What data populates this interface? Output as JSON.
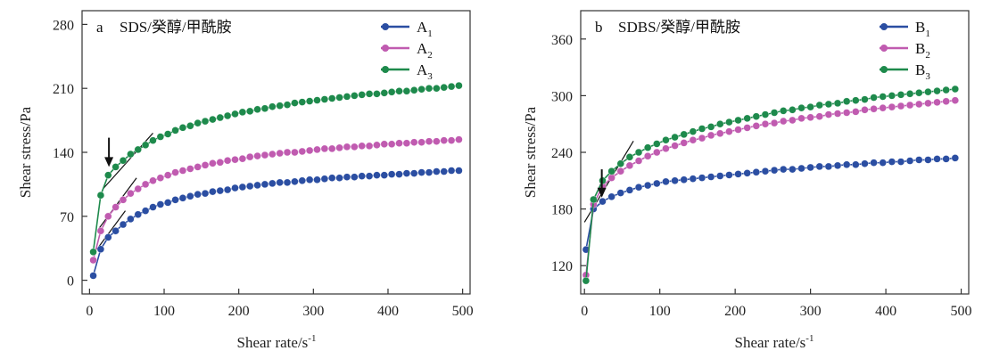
{
  "chart_data": [
    {
      "type": "scatter",
      "panel_label": "a",
      "title": "SDS/癸醇/甲酰胺",
      "xlabel": "Shear rate/s",
      "xlabel_sup": "-1",
      "ylabel": "Shear stress/Pa",
      "xlim": [
        -10,
        510
      ],
      "ylim": [
        -15,
        295
      ],
      "xticks": [
        0,
        100,
        200,
        300,
        400,
        500
      ],
      "yticks": [
        0,
        70,
        140,
        210,
        280
      ],
      "grid": false,
      "legend_position": "top-right",
      "tangent_lines": [
        {
          "series": "A1",
          "x": [
            10,
            48
          ],
          "y": [
            34,
            76
          ]
        },
        {
          "series": "A2",
          "x": [
            12,
            63
          ],
          "y": [
            56,
            112
          ]
        },
        {
          "series": "A3",
          "x": [
            18,
            85
          ],
          "y": [
            100,
            161
          ]
        }
      ],
      "arrow": {
        "x": 26,
        "y_from": 156,
        "y_to": 126
      },
      "series": [
        {
          "name": "A",
          "subscript": "1",
          "color": "#2b4ea2",
          "x": [
            5,
            15,
            25,
            35,
            45,
            55,
            65,
            75,
            85,
            95,
            105,
            115,
            125,
            135,
            145,
            155,
            165,
            175,
            185,
            195,
            205,
            215,
            225,
            235,
            245,
            255,
            265,
            275,
            285,
            295,
            305,
            315,
            325,
            335,
            345,
            355,
            365,
            375,
            385,
            395,
            405,
            415,
            425,
            435,
            445,
            455,
            465,
            475,
            485,
            495
          ],
          "y": [
            5,
            34,
            47,
            54,
            61,
            67,
            72,
            76,
            80,
            83,
            85,
            88,
            90,
            92,
            94,
            95,
            97,
            98,
            99,
            101,
            102,
            103,
            104,
            105,
            106,
            107,
            107,
            108,
            109,
            110,
            110,
            111,
            112,
            112,
            113,
            113,
            114,
            114,
            115,
            115,
            116,
            116,
            117,
            117,
            118,
            118,
            119,
            119,
            120,
            120
          ]
        },
        {
          "name": "A",
          "subscript": "2",
          "color": "#c05bb0",
          "x": [
            5,
            15,
            25,
            35,
            45,
            55,
            65,
            75,
            85,
            95,
            105,
            115,
            125,
            135,
            145,
            155,
            165,
            175,
            185,
            195,
            205,
            215,
            225,
            235,
            245,
            255,
            265,
            275,
            285,
            295,
            305,
            315,
            325,
            335,
            345,
            355,
            365,
            375,
            385,
            395,
            405,
            415,
            425,
            435,
            445,
            455,
            465,
            475,
            485,
            495
          ],
          "y": [
            22,
            54,
            70,
            80,
            88,
            95,
            100,
            105,
            109,
            112,
            115,
            118,
            120,
            122,
            124,
            126,
            128,
            129,
            131,
            132,
            133,
            135,
            136,
            137,
            138,
            139,
            140,
            140,
            141,
            142,
            143,
            144,
            144,
            145,
            146,
            146,
            147,
            147,
            148,
            149,
            149,
            150,
            150,
            151,
            151,
            152,
            152,
            153,
            153,
            154
          ]
        },
        {
          "name": "A",
          "subscript": "3",
          "color": "#1e8a4c",
          "x": [
            5,
            15,
            25,
            35,
            45,
            55,
            65,
            75,
            85,
            95,
            105,
            115,
            125,
            135,
            145,
            155,
            165,
            175,
            185,
            195,
            205,
            215,
            225,
            235,
            245,
            255,
            265,
            275,
            285,
            295,
            305,
            315,
            325,
            335,
            345,
            355,
            365,
            375,
            385,
            395,
            405,
            415,
            425,
            435,
            445,
            455,
            465,
            475,
            485,
            495
          ],
          "y": [
            31,
            93,
            115,
            124,
            131,
            138,
            143,
            148,
            153,
            157,
            160,
            164,
            167,
            169,
            172,
            174,
            176,
            178,
            180,
            182,
            184,
            185,
            187,
            188,
            190,
            191,
            192,
            194,
            195,
            196,
            197,
            198,
            199,
            200,
            201,
            202,
            203,
            204,
            204,
            205,
            206,
            207,
            207,
            208,
            209,
            210,
            210,
            211,
            212,
            213
          ]
        }
      ]
    },
    {
      "type": "scatter",
      "panel_label": "b",
      "title": "SDBS/癸醇/甲酰胺",
      "xlabel": "Shear rate/s",
      "xlabel_sup": "-1",
      "ylabel": "Shear stress/Pa",
      "xlim": [
        -5,
        510
      ],
      "ylim": [
        90,
        390
      ],
      "xticks": [
        0,
        100,
        200,
        300,
        400,
        500
      ],
      "yticks": [
        120,
        180,
        240,
        300,
        360
      ],
      "grid": false,
      "legend_position": "top-right",
      "tangent_lines": [
        {
          "series": "B3",
          "x": [
            0,
            65
          ],
          "y": [
            166,
            252
          ]
        }
      ],
      "arrow": {
        "x": 23,
        "y_from": 222,
        "y_to": 194
      },
      "series": [
        {
          "name": "B",
          "subscript": "1",
          "color": "#2b4ea2",
          "x": [
            2,
            12,
            24,
            36,
            48,
            60,
            72,
            84,
            96,
            108,
            120,
            132,
            144,
            156,
            168,
            180,
            192,
            204,
            216,
            228,
            240,
            252,
            264,
            276,
            288,
            300,
            312,
            324,
            336,
            348,
            360,
            372,
            384,
            396,
            408,
            420,
            432,
            444,
            456,
            468,
            480,
            492
          ],
          "y": [
            137,
            180,
            188,
            193,
            197,
            200,
            203,
            205,
            207,
            209,
            210,
            211,
            212,
            213,
            214,
            215,
            216,
            217,
            218,
            219,
            220,
            221,
            222,
            222,
            223,
            224,
            225,
            225,
            226,
            227,
            227,
            228,
            229,
            229,
            230,
            230,
            231,
            232,
            232,
            233,
            233,
            234
          ]
        },
        {
          "name": "B",
          "subscript": "2",
          "color": "#c05bb0",
          "x": [
            2,
            12,
            24,
            36,
            48,
            60,
            72,
            84,
            96,
            108,
            120,
            132,
            144,
            156,
            168,
            180,
            192,
            204,
            216,
            228,
            240,
            252,
            264,
            276,
            288,
            300,
            312,
            324,
            336,
            348,
            360,
            372,
            384,
            396,
            408,
            420,
            432,
            444,
            456,
            468,
            480,
            492
          ],
          "y": [
            110,
            185,
            204,
            213,
            220,
            226,
            231,
            236,
            240,
            244,
            247,
            250,
            253,
            255,
            258,
            260,
            262,
            264,
            266,
            268,
            270,
            271,
            273,
            274,
            276,
            277,
            278,
            280,
            281,
            282,
            283,
            285,
            286,
            287,
            288,
            289,
            290,
            291,
            292,
            293,
            294,
            295
          ]
        },
        {
          "name": "B",
          "subscript": "3",
          "color": "#1e8a4c",
          "x": [
            2,
            12,
            24,
            36,
            48,
            60,
            72,
            84,
            96,
            108,
            120,
            132,
            144,
            156,
            168,
            180,
            192,
            204,
            216,
            228,
            240,
            252,
            264,
            276,
            288,
            300,
            312,
            324,
            336,
            348,
            360,
            372,
            384,
            396,
            408,
            420,
            432,
            444,
            456,
            468,
            480,
            492
          ],
          "y": [
            104,
            190,
            210,
            220,
            228,
            235,
            240,
            245,
            249,
            253,
            256,
            259,
            262,
            265,
            267,
            270,
            272,
            274,
            276,
            278,
            280,
            282,
            284,
            285,
            287,
            288,
            290,
            291,
            292,
            294,
            295,
            296,
            298,
            299,
            300,
            301,
            302,
            303,
            304,
            305,
            306,
            307
          ]
        }
      ]
    }
  ]
}
